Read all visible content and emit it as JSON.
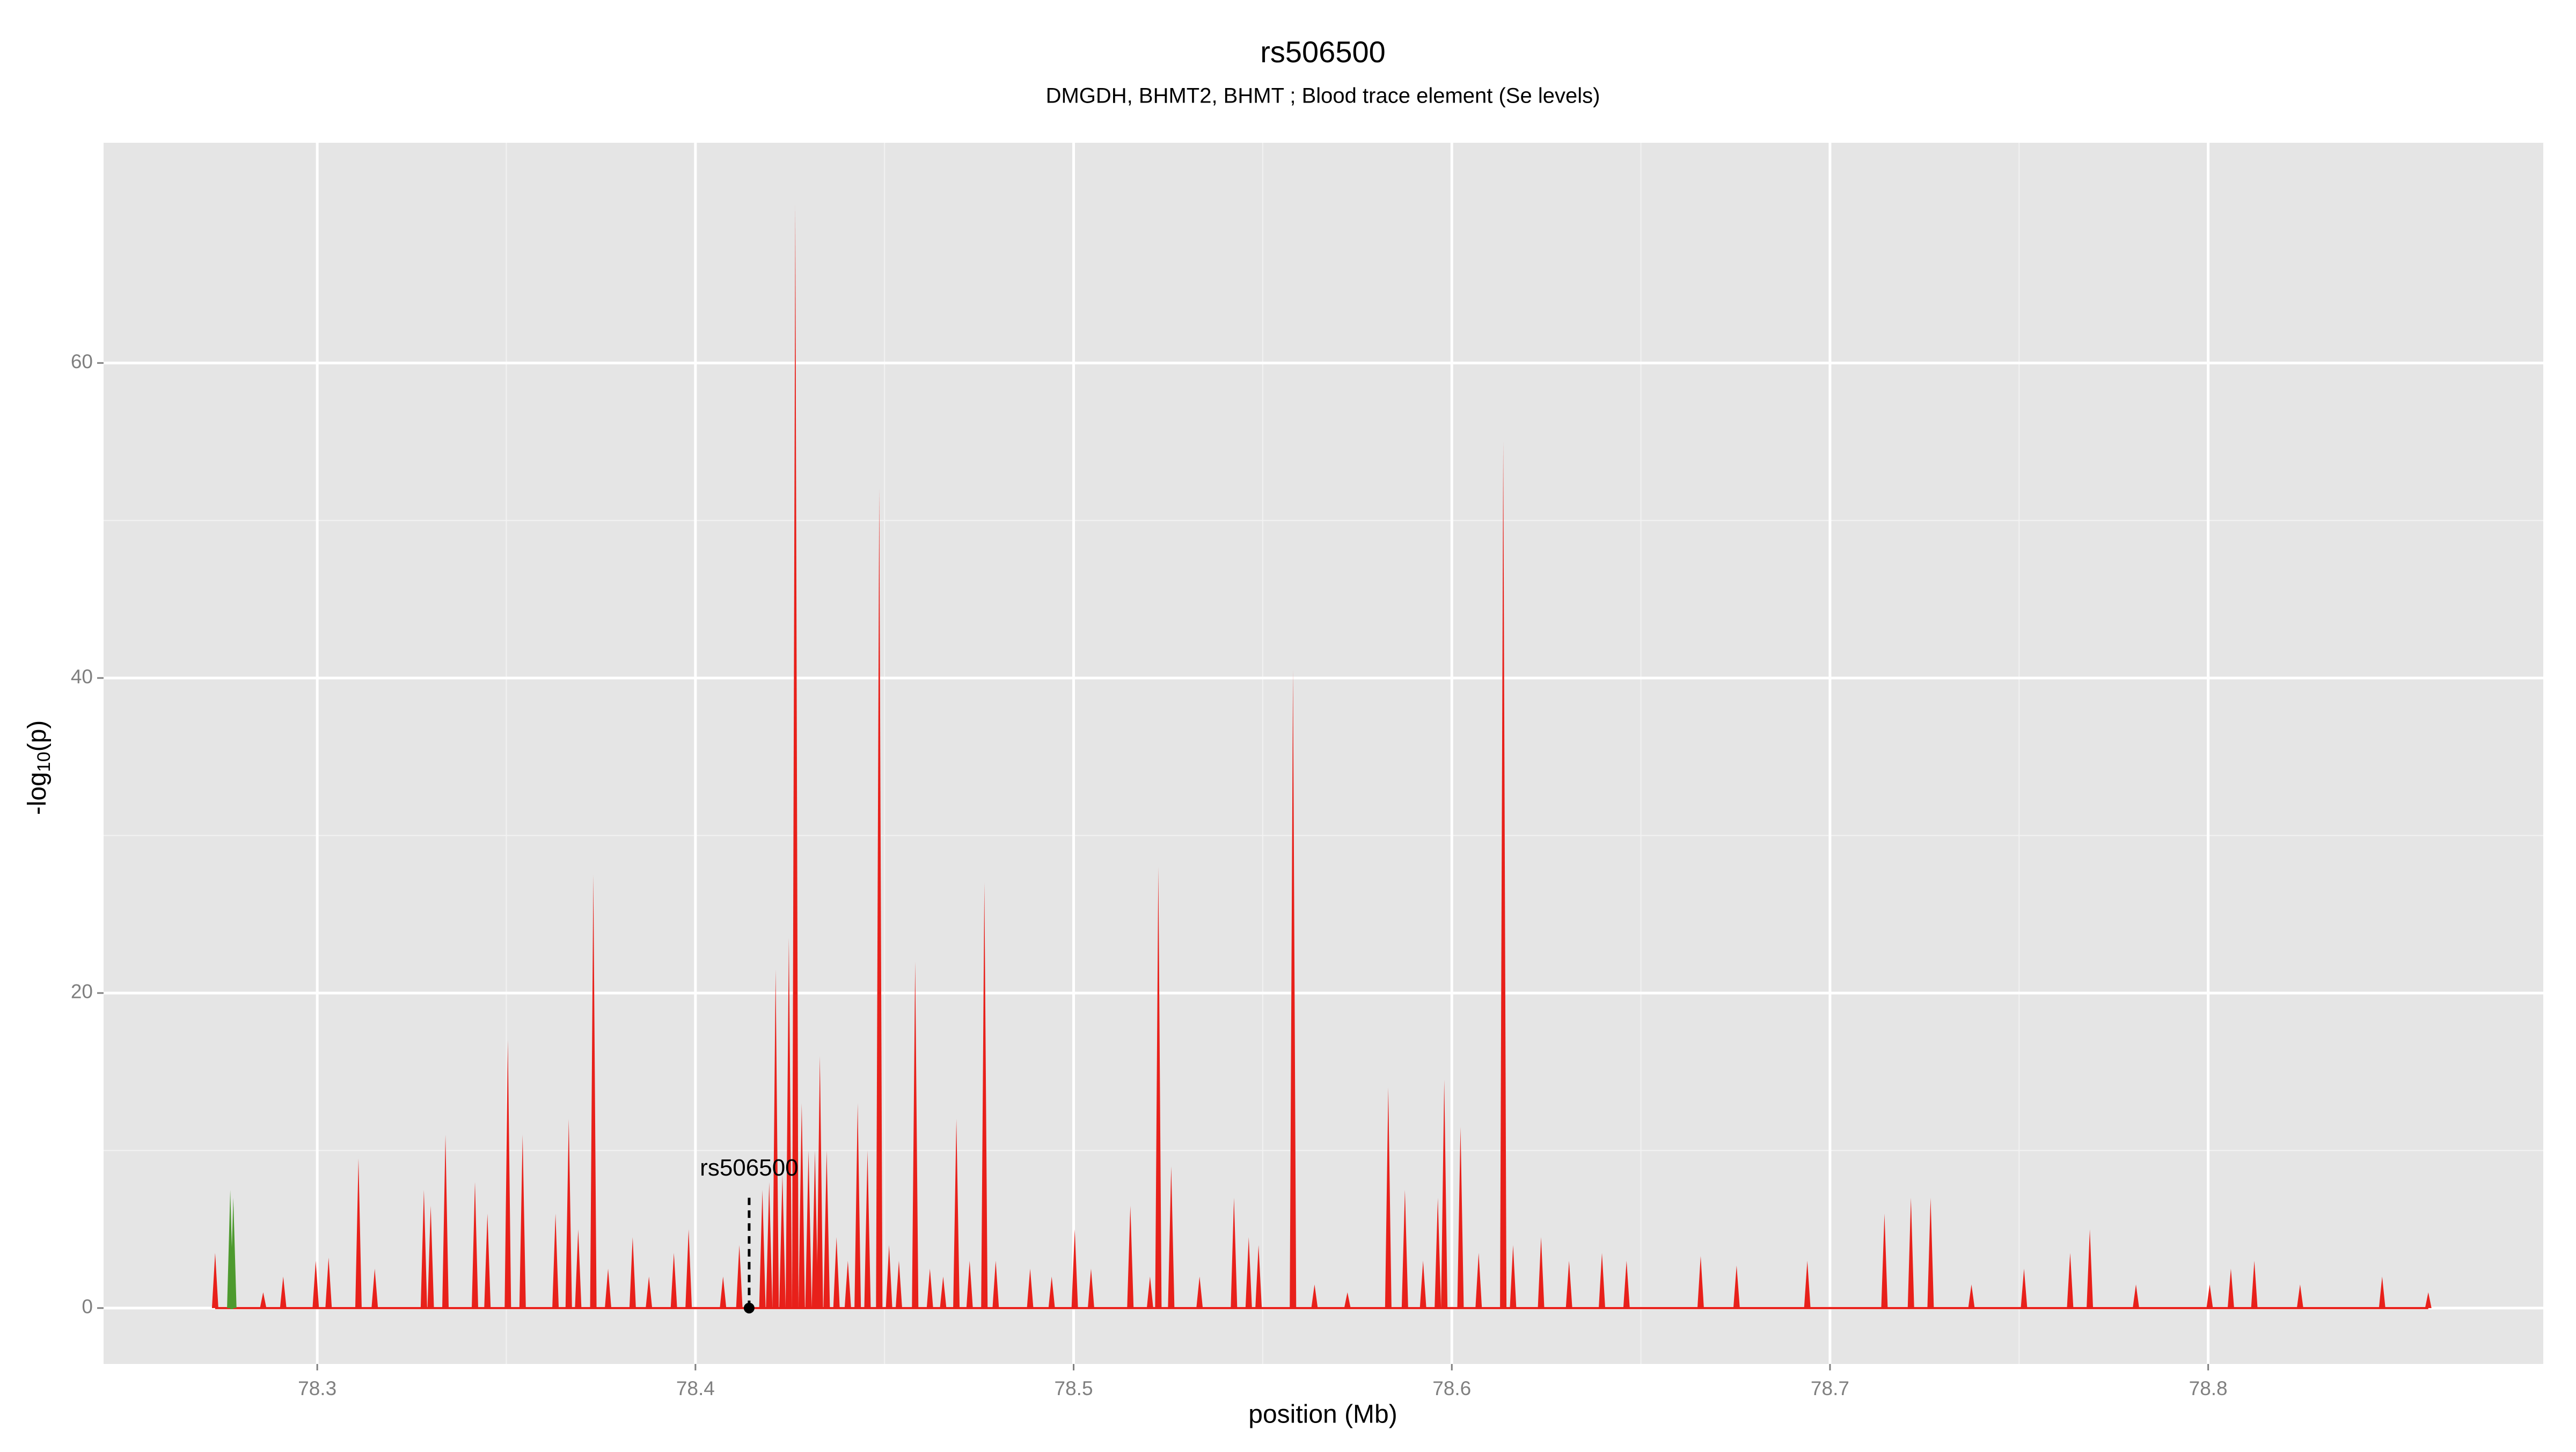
{
  "chart_data": {
    "type": "spike",
    "title": "rs506500",
    "subtitle": "DMGDH, BHMT2, BHMT ; Blood trace element (Se levels)",
    "xlabel": "position (Mb)",
    "ylabel": {
      "base": "-log",
      "subscript": "10",
      "rest": "(p)"
    },
    "xlim": [
      78.2435,
      78.8886
    ],
    "ylim": [
      -3.55,
      73.98
    ],
    "xticks": [
      78.3,
      78.4,
      78.5,
      78.6,
      78.7,
      78.8
    ],
    "yticks": [
      0,
      20,
      40,
      60
    ],
    "grid": true,
    "series": [
      {
        "color": "#e8201a",
        "x": [
          78.273,
          78.2857,
          78.291,
          78.2996,
          78.303,
          78.3109,
          78.3152,
          78.3282,
          78.33,
          78.3339,
          78.3417,
          78.345,
          78.3504,
          78.3543,
          78.363,
          78.3665,
          78.369,
          78.373,
          78.3769,
          78.3834,
          78.3877,
          78.3943,
          78.3982,
          78.4073,
          78.4116,
          78.4177,
          78.4195,
          78.4212,
          78.423,
          78.4247,
          78.4264,
          78.4281,
          78.4299,
          78.4316,
          78.4329,
          78.4347,
          78.4373,
          78.4403,
          78.4429,
          78.4455,
          78.4486,
          78.4512,
          78.4538,
          78.4581,
          78.462,
          78.4655,
          78.469,
          78.4725,
          78.4764,
          78.4794,
          78.4885,
          78.4942,
          78.5003,
          78.5046,
          78.515,
          78.5202,
          78.5224,
          78.5258,
          78.5333,
          78.5424,
          78.5463,
          78.5489,
          78.558,
          78.5637,
          78.5724,
          78.5832,
          78.5876,
          78.5924,
          78.5963,
          78.598,
          78.6023,
          78.6071,
          78.6136,
          78.6162,
          78.6236,
          78.631,
          78.6397,
          78.6462,
          78.6658,
          78.6753,
          78.694,
          78.7144,
          78.7214,
          78.7266,
          78.7374,
          78.7513,
          78.7635,
          78.7687,
          78.7809,
          78.8004,
          78.806,
          78.8122,
          78.8243,
          78.846,
          78.8582
        ],
        "values": [
          3.5,
          1,
          2,
          3,
          3.2,
          9.5,
          2.5,
          7.5,
          6.5,
          11,
          8,
          6,
          17,
          11,
          6,
          12,
          5,
          27.5,
          2.5,
          4.5,
          2,
          3.5,
          5,
          2,
          4,
          7.5,
          8,
          21.5,
          8.5,
          23.5,
          70,
          13,
          10,
          10,
          16,
          10,
          4.5,
          3,
          13,
          10,
          52,
          4,
          3,
          22,
          2.5,
          2,
          12,
          3,
          27,
          3,
          2.5,
          2,
          5,
          2.5,
          6.5,
          2,
          28,
          9,
          2,
          7,
          4.5,
          4,
          40.5,
          1.5,
          1,
          14,
          7.5,
          3,
          7,
          14.5,
          11.5,
          3.5,
          55,
          4,
          4.5,
          3,
          3.5,
          3,
          3.3,
          2.7,
          3,
          6,
          7,
          7,
          1.5,
          2.5,
          3.5,
          5,
          1.5,
          1.5,
          2.5,
          3,
          1.5,
          2,
          1
        ]
      },
      {
        "color": "#4d9a2e",
        "x": [
          78.277,
          78.2778
        ],
        "values": [
          7.5,
          7
        ]
      }
    ],
    "annotation": {
      "text": "rs506500",
      "x": 78.4142,
      "y": 0
    }
  }
}
